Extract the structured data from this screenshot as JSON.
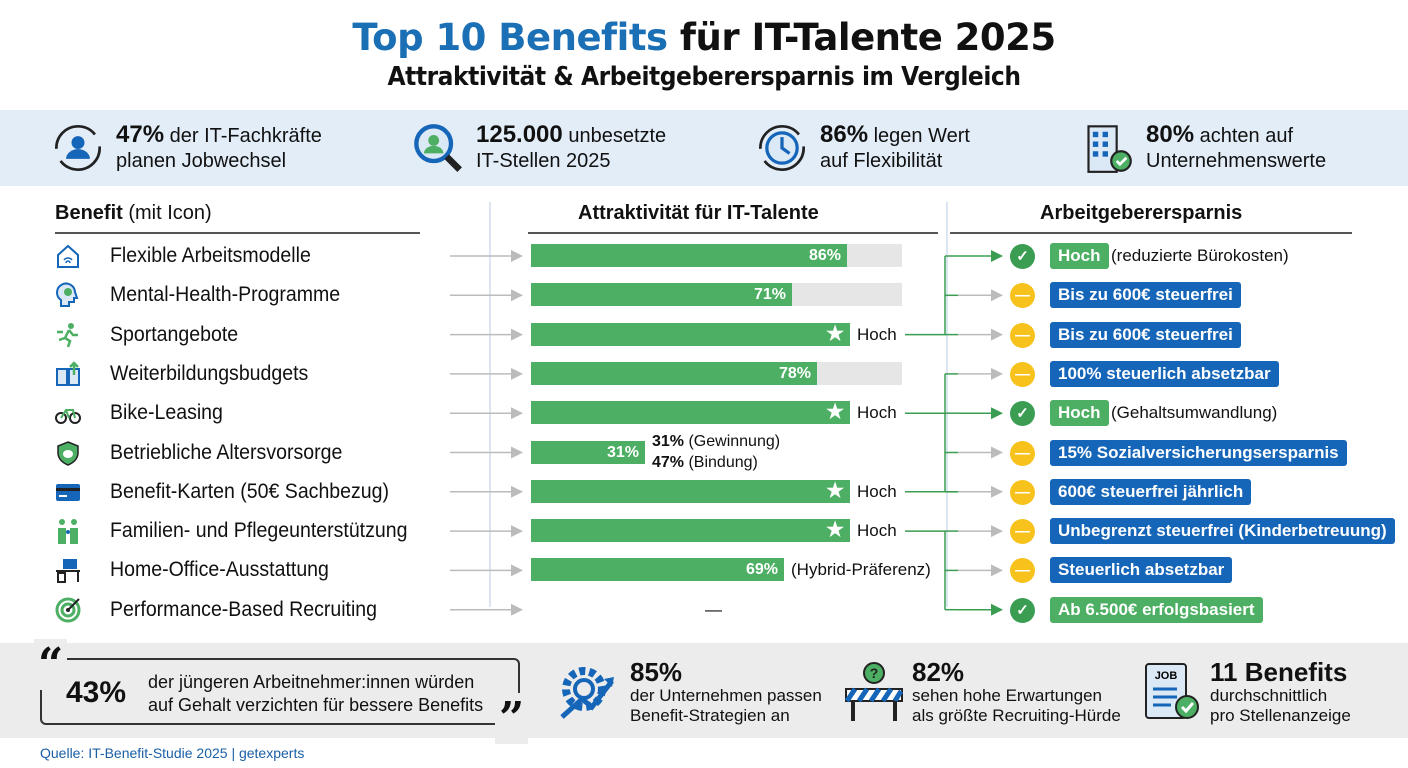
{
  "header": {
    "title_highlight": "Top 10 Benefits",
    "title_rest": " für IT-Talente 2025",
    "subtitle": "Attraktivität & Arbeitgeberersparnis im Vergleich"
  },
  "stats": [
    {
      "value": "47%",
      "text1": " der IT-Fachkräfte",
      "text2": "planen Jobwechsel",
      "icon": "user-cycle-icon"
    },
    {
      "value": "125.000",
      "text1": " unbesetzte",
      "text2": "IT-Stellen 2025",
      "icon": "search-user-icon"
    },
    {
      "value": "86%",
      "text1": " legen Wert",
      "text2": "auf Flexibilität",
      "icon": "clock-cycle-icon"
    },
    {
      "value": "80%",
      "text1": " achten auf",
      "text2": "Unternehmenswerte",
      "icon": "building-check-icon"
    }
  ],
  "columns": {
    "benefit_bold": "Benefit",
    "benefit_rest": " (mit Icon)",
    "attractiveness": "Attraktivität für IT-Talente",
    "savings": "Arbeitgeberersparnis"
  },
  "colors": {
    "blue": "#1a6fb5",
    "green": "#4caf63",
    "yellow": "#f7c21b",
    "badge_blue": "#1565b8"
  },
  "rows": [
    {
      "label": "Flexible Arbeitsmodelle",
      "icon": "house-wifi-icon",
      "bar_label": "86%",
      "side": "",
      "status": "check",
      "badge": "Hoch",
      "badge_color": "green",
      "note": "(reduzierte Bürokosten)"
    },
    {
      "label": "Mental-Health-Programme",
      "icon": "head-brain-icon",
      "bar_label": "71%",
      "side": "",
      "status": "neutral",
      "badge": "Bis zu 600€ steuerfrei",
      "badge_color": "blue",
      "note": ""
    },
    {
      "label": "Sportangebote",
      "icon": "running-person-icon",
      "bar_label": "★",
      "side": "Hoch",
      "status": "neutral",
      "badge": "Bis zu 600€ steuerfrei",
      "badge_color": "blue",
      "note": ""
    },
    {
      "label": "Weiterbildungsbudgets",
      "icon": "book-arrow-icon",
      "bar_label": "78%",
      "side": "",
      "status": "neutral",
      "badge": "100% steuerlich absetzbar",
      "badge_color": "blue",
      "note": ""
    },
    {
      "label": "Bike-Leasing",
      "icon": "bicycle-icon",
      "bar_label": "★",
      "side": "Hoch",
      "status": "check",
      "badge": "Hoch",
      "badge_color": "green",
      "note": "(Gehaltsumwandlung)"
    },
    {
      "label": "Betriebliche Altersvorsorge",
      "icon": "shield-piggy-icon",
      "bar_label": "31%",
      "side": "",
      "side_lines": [
        {
          "bold": "31%",
          "rest": " (Gewinnung)"
        },
        {
          "bold": "47%",
          "rest": " (Bindung)"
        }
      ],
      "status": "neutral",
      "badge": "15% Sozialversicherungsersparnis",
      "badge_color": "blue",
      "note": ""
    },
    {
      "label": "Benefit-Karten (50€ Sachbezug)",
      "icon": "credit-card-icon",
      "bar_label": "★",
      "side": "Hoch",
      "status": "neutral",
      "badge": "600€ steuerfrei jährlich",
      "badge_color": "blue",
      "note": ""
    },
    {
      "label": "Familien- und Pflegeunterstützung",
      "icon": "family-icon",
      "bar_label": "★",
      "side": "Hoch",
      "status": "neutral",
      "badge": "Unbegrenzt steuerfrei (Kinderbetreuung)",
      "badge_color": "blue",
      "note": ""
    },
    {
      "label": "Home-Office-Ausstattung",
      "icon": "desk-computer-icon",
      "bar_label": "69%",
      "side": "(Hybrid-Präferenz)",
      "status": "neutral",
      "badge": "Steuerlich absetzbar",
      "badge_color": "blue",
      "note": ""
    },
    {
      "label": "Performance-Based Recruiting",
      "icon": "target-icon",
      "bar_label": "",
      "side": "—",
      "status": "check",
      "badge": "Ab 6.500€ erfolgsbasiert",
      "badge_color": "green",
      "note": ""
    }
  ],
  "chart_data": {
    "type": "bar",
    "orientation": "horizontal",
    "title": "Attraktivität für IT-Talente",
    "categories": [
      "Flexible Arbeitsmodelle",
      "Mental-Health-Programme",
      "Sportangebote",
      "Weiterbildungsbudgets",
      "Bike-Leasing",
      "Betriebliche Altersvorsorge",
      "Benefit-Karten (50€ Sachbezug)",
      "Familien- und Pflegeunterstützung",
      "Home-Office-Ausstattung",
      "Performance-Based Recruiting"
    ],
    "values": [
      86,
      71,
      "Hoch",
      78,
      "Hoch",
      31,
      "Hoch",
      "Hoch",
      69,
      null
    ],
    "unit": "%",
    "xlim": [
      0,
      100
    ]
  },
  "bottom": {
    "quote": {
      "value": "43%",
      "line1": "der jüngeren Arbeitnehmer:innen würden",
      "line2": "auf Gehalt verzichten für bessere Benefits"
    },
    "stats": [
      {
        "value": "85%",
        "line1": "der Unternehmen passen",
        "line2": "Benefit-Strategien an",
        "icon": "gear-growth-icon"
      },
      {
        "value": "82%",
        "line1": "sehen hohe Erwartungen",
        "line2": "als größte Recruiting-Hürde",
        "icon": "barrier-question-icon"
      },
      {
        "value": "11 Benefits",
        "line1": "durchschnittlich",
        "line2": "pro Stellenanzeige",
        "icon": "job-checklist-icon",
        "icon_text": "JOB"
      }
    ]
  },
  "source": "Quelle: IT-Benefit-Studie 2025 | getexperts"
}
